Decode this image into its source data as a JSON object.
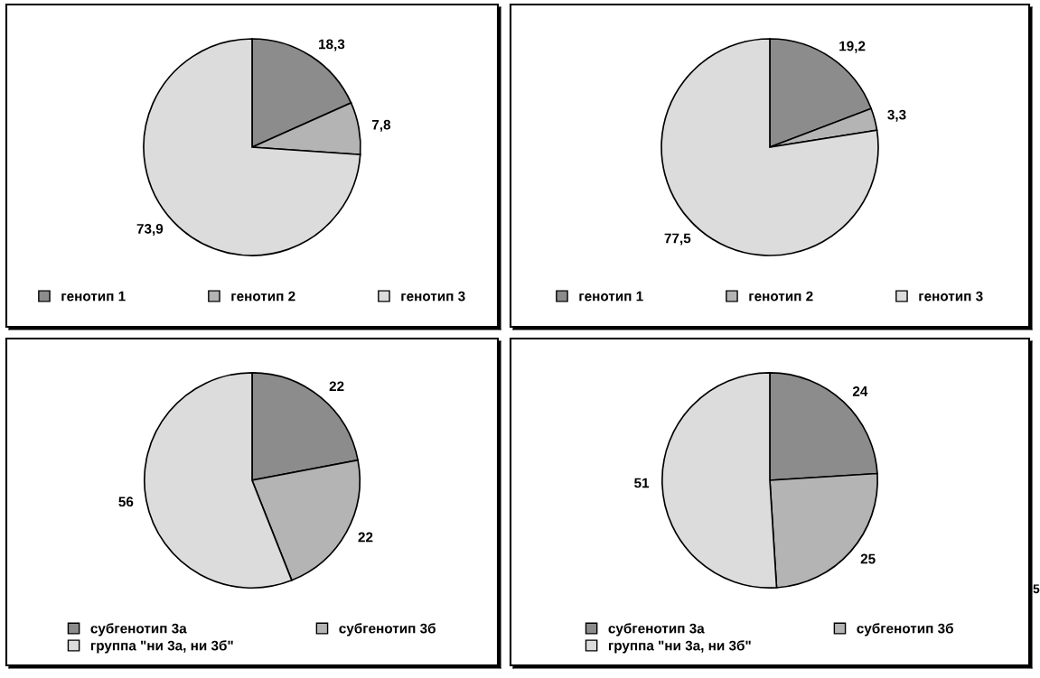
{
  "chart_data": [
    {
      "type": "pie",
      "categories": [
        "генотип 1",
        "генотип 2",
        "генотип 3"
      ],
      "values": [
        18.3,
        7.8,
        73.9
      ],
      "value_labels": [
        "18,3",
        "7,8",
        "73,9"
      ],
      "colors": [
        "#8c8c8c",
        "#b4b4b4",
        "#dcdcdc"
      ],
      "legend": "bottom"
    },
    {
      "type": "pie",
      "categories": [
        "генотип 1",
        "генотип 2",
        "генотип 3"
      ],
      "values": [
        19.2,
        3.3,
        77.5
      ],
      "value_labels": [
        "19,2",
        "3,3",
        "77,5"
      ],
      "colors": [
        "#8c8c8c",
        "#b4b4b4",
        "#dcdcdc"
      ],
      "legend": "bottom"
    },
    {
      "type": "pie",
      "categories": [
        "субгенотип 3а",
        "субгенотип 3б",
        "группа \"ни 3а, ни 3б\""
      ],
      "values": [
        22,
        22,
        56
      ],
      "value_labels": [
        "22",
        "22",
        "56"
      ],
      "colors": [
        "#8c8c8c",
        "#b4b4b4",
        "#dcdcdc"
      ],
      "legend": "bottom"
    },
    {
      "type": "pie",
      "categories": [
        "субгенотип 3а",
        "субгенотип 3б",
        "группа \"ни 3а, ни 3б\""
      ],
      "values": [
        24,
        25,
        51
      ],
      "value_labels": [
        "24",
        "25",
        "51"
      ],
      "colors": [
        "#8c8c8c",
        "#b4b4b4",
        "#dcdcdc"
      ],
      "legend": "bottom",
      "annotations": [
        "5"
      ]
    }
  ]
}
